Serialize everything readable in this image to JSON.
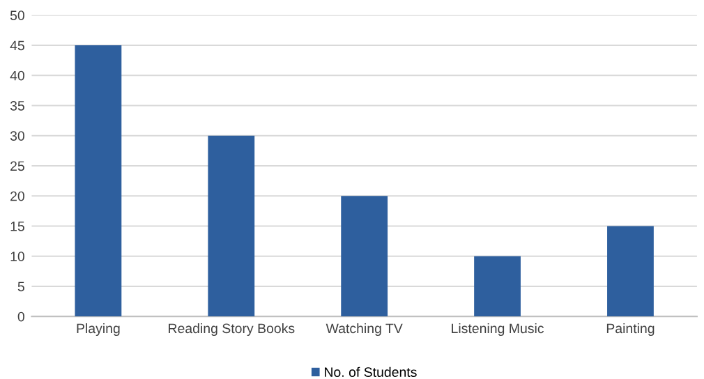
{
  "chart_data": {
    "type": "bar",
    "categories": [
      "Playing",
      "Reading Story Books",
      "Watching TV",
      "Listening Music",
      "Painting"
    ],
    "series": [
      {
        "name": "No. of Students",
        "color": "#2e5f9e",
        "values": [
          45,
          30,
          20,
          10,
          15
        ]
      }
    ],
    "ylim": [
      0,
      50
    ],
    "yticks": [
      0,
      5,
      10,
      15,
      20,
      25,
      30,
      35,
      40,
      45,
      50
    ],
    "grid": "y",
    "legend": "bottom"
  }
}
